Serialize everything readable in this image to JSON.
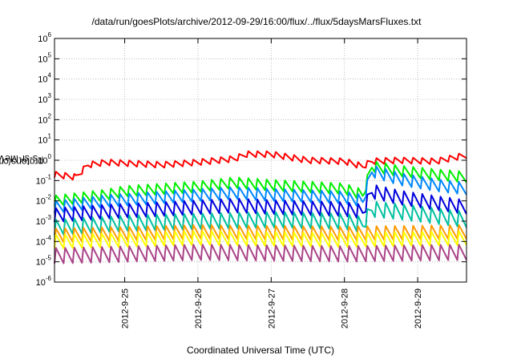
{
  "chart_data": {
    "type": "line",
    "title": "/data/run/goesPlots/archive/2012-09-29/16:00/flux/../flux/5daysMarsFluxes.txt",
    "xlabel": "Coordinated Universal Time (UTC)",
    "ylabel": {
      "pre": "protons/cm",
      "sup": "2",
      "post": "-s-sr-MeV"
    },
    "y_scale": "log",
    "ylim": [
      1e-06,
      1000000.0
    ],
    "yticks": [
      {
        "base": "10",
        "exp": "-6",
        "v": 1e-06
      },
      {
        "base": "10",
        "exp": "-5",
        "v": 1e-05
      },
      {
        "base": "10",
        "exp": "-4",
        "v": 0.0001
      },
      {
        "base": "10",
        "exp": "-3",
        "v": 0.001
      },
      {
        "base": "10",
        "exp": "-2",
        "v": 0.01
      },
      {
        "base": "10",
        "exp": "-1",
        "v": 0.1
      },
      {
        "base": "10",
        "exp": "0",
        "v": 1
      },
      {
        "base": "10",
        "exp": "1",
        "v": 10
      },
      {
        "base": "10",
        "exp": "2",
        "v": 100
      },
      {
        "base": "10",
        "exp": "3",
        "v": 1000
      },
      {
        "base": "10",
        "exp": "4",
        "v": 10000
      },
      {
        "base": "10",
        "exp": "5",
        "v": 100000
      },
      {
        "base": "10",
        "exp": "6",
        "v": 1000000
      }
    ],
    "xlim": [
      "2012-09-24T01:00",
      "2012-09-29T16:00"
    ],
    "xticks": [
      {
        "label": "2012-9-25",
        "t": "2012-09-25T00:00"
      },
      {
        "label": "2012-9-26",
        "t": "2012-09-26T00:00"
      },
      {
        "label": "2012-9-27",
        "t": "2012-09-27T00:00"
      },
      {
        "label": "2012-9-28",
        "t": "2012-09-28T00:00"
      },
      {
        "label": "2012-9-29",
        "t": "2012-09-29T00:00"
      }
    ],
    "grid": true,
    "sawtooth_period_hours": 3,
    "series": [
      {
        "color": "#ff0000",
        "profile": [
          [
            "2012-09-24T01:00",
            0.2
          ],
          [
            "2012-09-24T08:00",
            0.15
          ],
          [
            "2012-09-24T12:00",
            0.6
          ],
          [
            "2012-09-24T18:00",
            0.8
          ],
          [
            "2012-09-25T12:00",
            0.6
          ],
          [
            "2012-09-26T00:00",
            0.8
          ],
          [
            "2012-09-26T12:00",
            1.2
          ],
          [
            "2012-09-26T16:00",
            2.0
          ],
          [
            "2012-09-27T00:00",
            2.0
          ],
          [
            "2012-09-27T12:00",
            1.0
          ],
          [
            "2012-09-28T00:00",
            0.9
          ],
          [
            "2012-09-28T06:00",
            0.5
          ],
          [
            "2012-09-28T09:00",
            0.9
          ],
          [
            "2012-09-28T18:00",
            1.0
          ],
          [
            "2012-09-29T06:00",
            0.9
          ],
          [
            "2012-09-29T16:00",
            1.8
          ]
        ],
        "amp": 2.0
      },
      {
        "color": "#00ee00",
        "profile": [
          [
            "2012-09-24T01:00",
            0.01
          ],
          [
            "2012-09-24T18:00",
            0.02
          ],
          [
            "2012-09-25T00:00",
            0.03
          ],
          [
            "2012-09-26T00:00",
            0.05
          ],
          [
            "2012-09-26T12:00",
            0.08
          ],
          [
            "2012-09-27T00:00",
            0.06
          ],
          [
            "2012-09-28T00:00",
            0.04
          ],
          [
            "2012-09-28T06:00",
            0.02
          ],
          [
            "2012-09-28T09:00",
            0.5
          ],
          [
            "2012-09-28T18:00",
            0.3
          ],
          [
            "2012-09-29T06:00",
            0.2
          ],
          [
            "2012-09-29T16:00",
            0.15
          ]
        ],
        "amp": 3.5
      },
      {
        "color": "#0088ff",
        "profile": [
          [
            "2012-09-24T01:00",
            0.005
          ],
          [
            "2012-09-24T18:00",
            0.01
          ],
          [
            "2012-09-25T12:00",
            0.015
          ],
          [
            "2012-09-26T12:00",
            0.025
          ],
          [
            "2012-09-27T00:00",
            0.02
          ],
          [
            "2012-09-28T00:00",
            0.015
          ],
          [
            "2012-09-28T06:00",
            0.01
          ],
          [
            "2012-09-28T09:00",
            0.3
          ],
          [
            "2012-09-28T18:00",
            0.12
          ],
          [
            "2012-09-29T06:00",
            0.06
          ],
          [
            "2012-09-29T16:00",
            0.04
          ]
        ],
        "amp": 4.0
      },
      {
        "color": "#0000dd",
        "profile": [
          [
            "2012-09-24T01:00",
            0.002
          ],
          [
            "2012-09-24T18:00",
            0.003
          ],
          [
            "2012-09-25T12:00",
            0.004
          ],
          [
            "2012-09-26T12:00",
            0.006
          ],
          [
            "2012-09-27T00:00",
            0.005
          ],
          [
            "2012-09-28T00:00",
            0.004
          ],
          [
            "2012-09-28T06:00",
            0.003
          ],
          [
            "2012-09-28T09:00",
            0.03
          ],
          [
            "2012-09-28T18:00",
            0.015
          ],
          [
            "2012-09-29T06:00",
            0.008
          ],
          [
            "2012-09-29T16:00",
            0.005
          ]
        ],
        "amp": 5.0
      },
      {
        "color": "#00c0a0",
        "profile": [
          [
            "2012-09-24T01:00",
            0.0005
          ],
          [
            "2012-09-25T00:00",
            0.0008
          ],
          [
            "2012-09-26T00:00",
            0.001
          ],
          [
            "2012-09-27T00:00",
            0.0012
          ],
          [
            "2012-09-28T00:00",
            0.001
          ],
          [
            "2012-09-28T06:00",
            0.0007
          ],
          [
            "2012-09-28T09:00",
            0.004
          ],
          [
            "2012-09-28T18:00",
            0.003
          ],
          [
            "2012-09-29T16:00",
            0.0012
          ]
        ],
        "amp": 6.0
      },
      {
        "color": "#ff9900",
        "profile": [
          [
            "2012-09-24T01:00",
            0.0002
          ],
          [
            "2012-09-26T00:00",
            0.0003
          ],
          [
            "2012-09-28T00:00",
            0.00025
          ],
          [
            "2012-09-29T16:00",
            0.0003
          ]
        ],
        "amp": 5.0
      },
      {
        "color": "#ffff00",
        "profile": [
          [
            "2012-09-24T01:00",
            0.0001
          ],
          [
            "2012-09-26T00:00",
            0.00015
          ],
          [
            "2012-09-28T00:00",
            0.00012
          ],
          [
            "2012-09-29T16:00",
            0.00015
          ]
        ],
        "amp": 5.0
      },
      {
        "color": "#aa4488",
        "profile": [
          [
            "2012-09-24T01:00",
            2e-05
          ],
          [
            "2012-09-26T00:00",
            3e-05
          ],
          [
            "2012-09-28T00:00",
            2.5e-05
          ],
          [
            "2012-09-29T16:00",
            3e-05
          ]
        ],
        "amp": 6.0
      }
    ]
  }
}
